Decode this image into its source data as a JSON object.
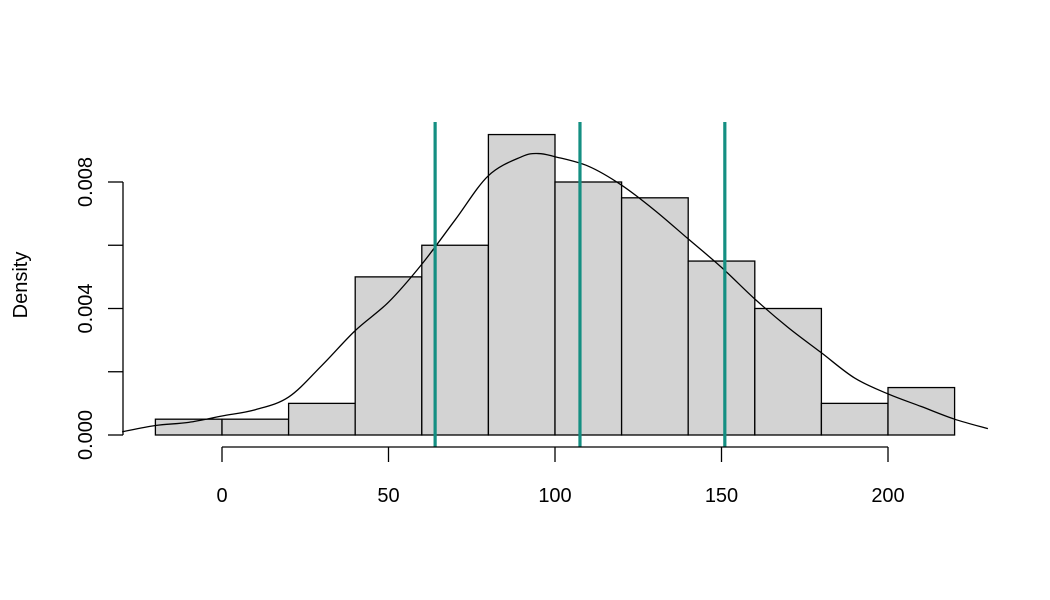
{
  "chart_data": {
    "type": "bar",
    "subtype": "histogram-with-density",
    "title": "",
    "xlabel": "",
    "ylabel": "Density",
    "xlim": [
      -30,
      230
    ],
    "ylim": [
      0,
      0.0098
    ],
    "x_ticks": [
      0,
      50,
      100,
      150,
      200
    ],
    "x_tick_labels": [
      "0",
      "50",
      "100",
      "150",
      "200"
    ],
    "y_ticks": [
      0,
      0.002,
      0.004,
      0.006,
      0.008
    ],
    "y_tick_labels": [
      "0.000",
      "",
      "0.004",
      "",
      "0.008"
    ],
    "bins": [
      {
        "from": -20,
        "to": 0,
        "density": 0.0005
      },
      {
        "from": 0,
        "to": 20,
        "density": 0.0005
      },
      {
        "from": 20,
        "to": 40,
        "density": 0.001
      },
      {
        "from": 40,
        "to": 60,
        "density": 0.005
      },
      {
        "from": 60,
        "to": 80,
        "density": 0.006
      },
      {
        "from": 80,
        "to": 100,
        "density": 0.0095
      },
      {
        "from": 100,
        "to": 120,
        "density": 0.008
      },
      {
        "from": 120,
        "to": 140,
        "density": 0.0075
      },
      {
        "from": 140,
        "to": 160,
        "density": 0.0055
      },
      {
        "from": 160,
        "to": 180,
        "density": 0.004
      },
      {
        "from": 180,
        "to": 200,
        "density": 0.001
      },
      {
        "from": 200,
        "to": 220,
        "density": 0.0015
      }
    ],
    "density_curve": {
      "x": [
        -30,
        -20,
        -10,
        0,
        10,
        20,
        30,
        40,
        50,
        60,
        70,
        80,
        90,
        95,
        100,
        110,
        120,
        130,
        140,
        150,
        160,
        170,
        180,
        190,
        200,
        210,
        220,
        230
      ],
      "y": [
        0.0001,
        0.0003,
        0.0004,
        0.0006,
        0.0008,
        0.0012,
        0.0022,
        0.0033,
        0.0042,
        0.0054,
        0.0068,
        0.0082,
        0.0088,
        0.0089,
        0.0088,
        0.0085,
        0.0079,
        0.0071,
        0.0062,
        0.0053,
        0.0043,
        0.0034,
        0.0026,
        0.0018,
        0.0013,
        0.0009,
        0.0005,
        0.0002
      ]
    },
    "vertical_lines": {
      "color": "#148f82",
      "x": [
        64,
        107.5,
        151
      ]
    },
    "bar_color": "#d3d3d3"
  }
}
